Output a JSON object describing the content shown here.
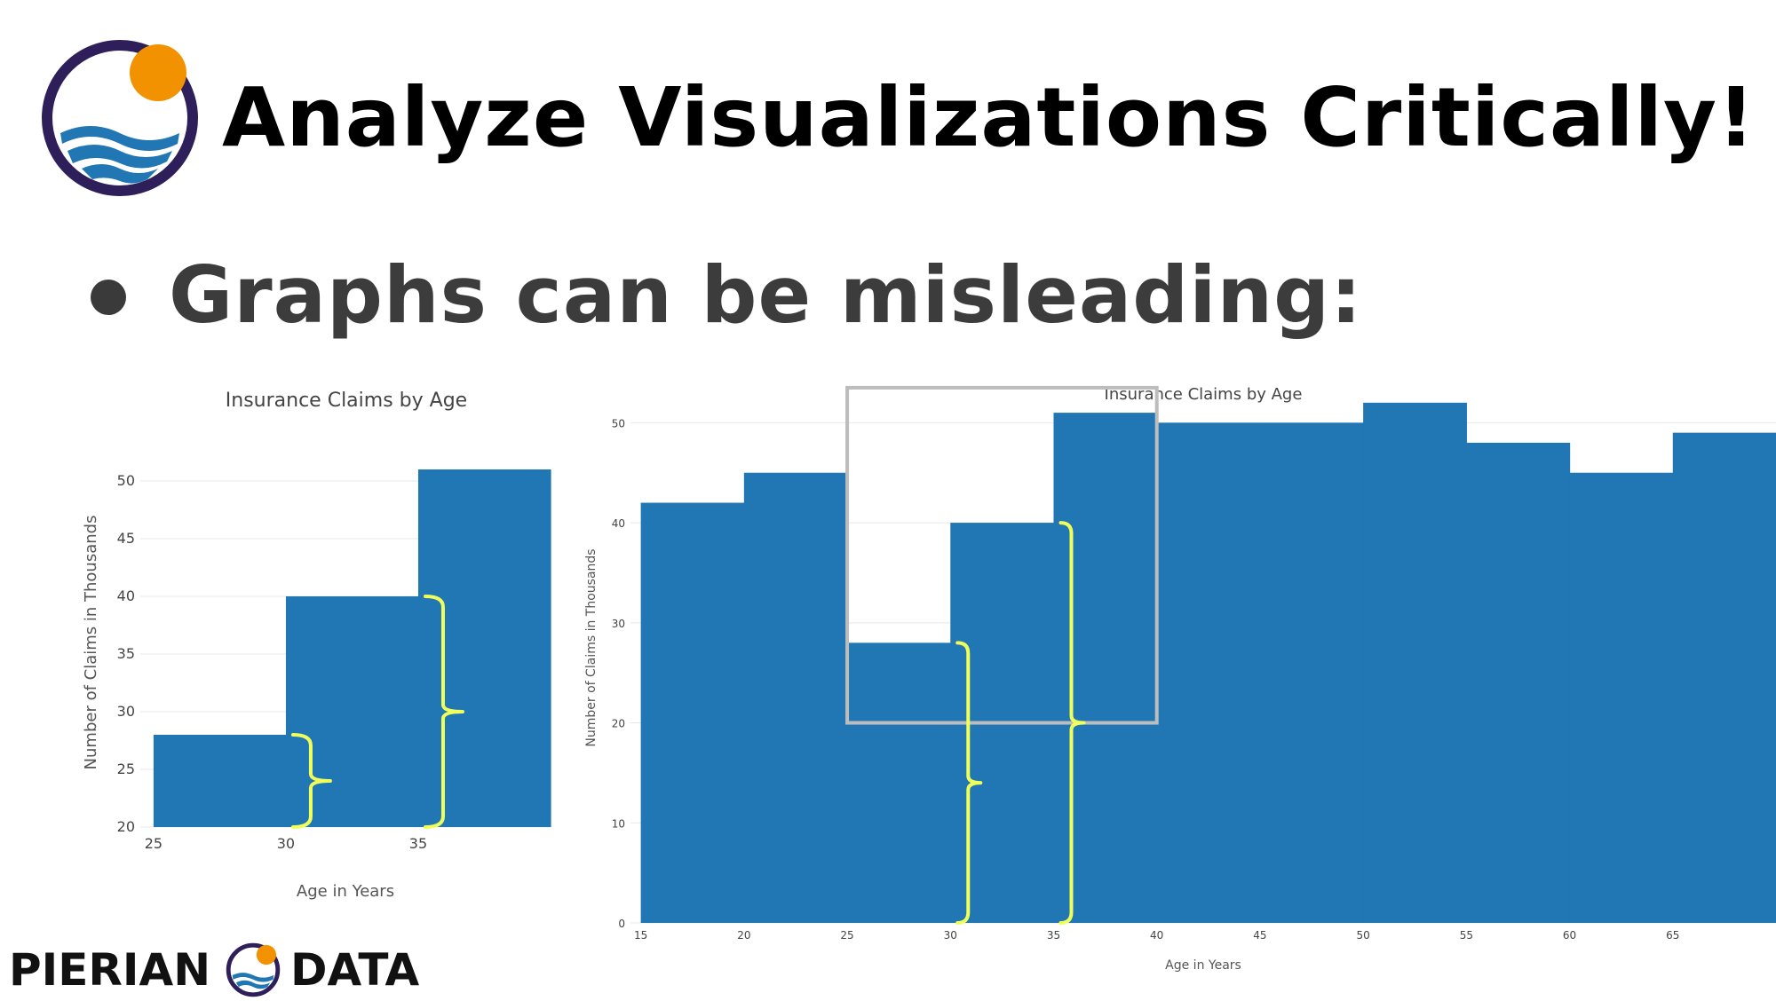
{
  "slide": {
    "title": "Analyze Visualizations Critically!",
    "bullet": "Graphs can be misleading:",
    "brand_left": "PIERIAN",
    "brand_right": "DATA"
  },
  "colors": {
    "bar": "#2176b4",
    "bracket": "#f0ff5a",
    "highlight_box": "#bdbdbd",
    "logo_ring": "#2e1e5a",
    "logo_sun": "#f39200",
    "logo_wave": "#2176b4"
  },
  "chart_data": [
    {
      "type": "bar",
      "title": "Insurance Claims by Age",
      "xlabel": "Age in Years",
      "ylabel": "Number of Claims in Thousands",
      "bin_edges": [
        25,
        30,
        35,
        40
      ],
      "values": [
        28,
        40,
        51
      ],
      "xlim": [
        24.5,
        40
      ],
      "ylim": [
        20,
        52
      ],
      "x_ticks": [
        25,
        30,
        35
      ],
      "y_ticks": [
        20,
        25,
        30,
        35,
        40,
        45,
        50
      ],
      "grid": true,
      "annotations": [
        {
          "type": "brace",
          "x": 30,
          "y_range": [
            20,
            28
          ]
        },
        {
          "type": "brace",
          "x": 35,
          "y_range": [
            20,
            40
          ]
        }
      ]
    },
    {
      "type": "bar",
      "title": "Insurance Claims by Age",
      "xlabel": "Age in Years",
      "ylabel": "Number of Claims in Thousands",
      "bin_edges": [
        15,
        20,
        25,
        30,
        35,
        40,
        45,
        50,
        55,
        60,
        65,
        70
      ],
      "values": [
        42,
        45,
        28,
        40,
        51,
        50,
        50,
        52,
        48,
        45,
        49
      ],
      "xlim": [
        14.5,
        70
      ],
      "ylim": [
        0,
        55
      ],
      "x_ticks": [
        15,
        20,
        25,
        30,
        35,
        40,
        45,
        50,
        55,
        60,
        65
      ],
      "y_ticks": [
        0,
        10,
        20,
        30,
        40,
        50
      ],
      "grid": true,
      "highlight_box": {
        "x_range": [
          25,
          40
        ],
        "y_range": [
          20,
          53.5
        ]
      },
      "annotations": [
        {
          "type": "brace",
          "x": 30,
          "y_range": [
            0,
            28
          ]
        },
        {
          "type": "brace",
          "x": 35,
          "y_range": [
            0,
            40
          ]
        }
      ]
    }
  ]
}
